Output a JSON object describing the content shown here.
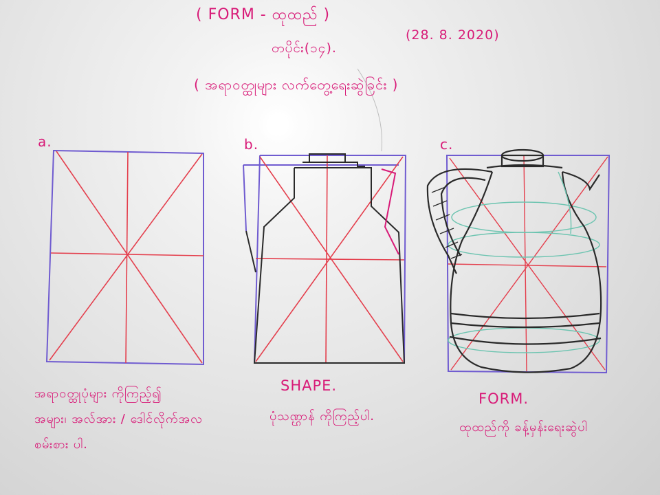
{
  "header": {
    "title": "( FORM - ထုထည် )",
    "lesson": "တပိုင်း(၁၄).",
    "date": "(28. 8. 2020)",
    "subtitle": "( အရာဝတ္ထုများ လက်တွေ့ရေးဆွဲခြင်း )"
  },
  "panels": [
    {
      "label": "a.",
      "captions": [
        "အရာဝတ္ထုပုံများ ကိုကြည့်၍",
        "အများ၊ အလ်အား / ဒေါင်လိုက်အလ",
        "စမ်းစား ပါ."
      ]
    },
    {
      "label": "b.",
      "captions": [
        "SHAPE.",
        "ပုံသဏ္ဌာန် ကိုကြည့်ပါ."
      ]
    },
    {
      "label": "c.",
      "captions": [
        "FORM.",
        "ထုထည်ကို ခန့်မှန်းရေးဆွဲပါ"
      ]
    }
  ],
  "colors": {
    "marker_magenta": "#d81b78",
    "marker_purple": "#6f5bd0",
    "marker_red": "#e43e4c",
    "marker_black": "#2a2a2a",
    "marker_teal": "#6cc4b0",
    "board": "#e6e6e6"
  }
}
